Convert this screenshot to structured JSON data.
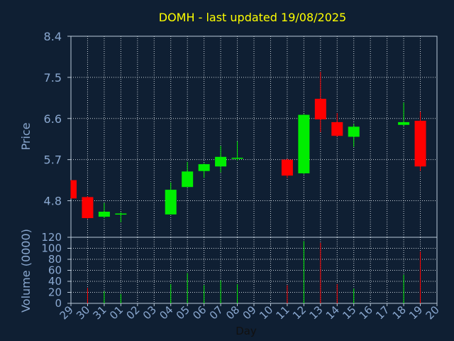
{
  "chart_data": {
    "type": "candlestick",
    "title": "DOMH - last updated 19/08/2025",
    "xlabel": "Day",
    "price_ylabel": "Price",
    "volume_ylabel": "Volume (0000)",
    "price_yticks": [
      "4.8",
      "5.7",
      "6.6",
      "7.5",
      "8.4"
    ],
    "price_ylim": [
      4.0,
      8.4
    ],
    "volume_yticks": [
      "0",
      "20",
      "40",
      "60",
      "80",
      "100",
      "120"
    ],
    "volume_ylim": [
      0,
      120
    ],
    "x_labels": [
      "29",
      "30",
      "31",
      "01",
      "02",
      "03",
      "04",
      "05",
      "06",
      "07",
      "08",
      "09",
      "10",
      "11",
      "12",
      "13",
      "14",
      "15",
      "16",
      "17",
      "18",
      "19",
      "20"
    ],
    "grid": true,
    "colors": {
      "background": "#0f1f33",
      "up": "#00ee00",
      "down": "#ff0000",
      "title": "#ffff00",
      "axis_text": "#8aa8d0",
      "frame": "#b8c8d8"
    },
    "candles": [
      {
        "x": 0,
        "open": 5.25,
        "close": 4.85,
        "high": 5.25,
        "low": 4.85,
        "volume": 0
      },
      {
        "x": 1,
        "open": 4.88,
        "close": 4.42,
        "high": 4.9,
        "low": 4.4,
        "volume": 28
      },
      {
        "x": 2,
        "open": 4.45,
        "close": 4.56,
        "high": 4.75,
        "low": 4.42,
        "volume": 22
      },
      {
        "x": 3,
        "open": 4.5,
        "close": 4.52,
        "high": 4.55,
        "low": 4.33,
        "volume": 17
      },
      {
        "x": 6,
        "open": 4.5,
        "close": 5.04,
        "high": 5.2,
        "low": 4.5,
        "volume": 35
      },
      {
        "x": 7,
        "open": 5.1,
        "close": 5.44,
        "high": 5.65,
        "low": 5.1,
        "volume": 55
      },
      {
        "x": 8,
        "open": 5.45,
        "close": 5.6,
        "high": 5.62,
        "low": 5.3,
        "volume": 33
      },
      {
        "x": 9,
        "open": 5.55,
        "close": 5.76,
        "high": 6.0,
        "low": 5.42,
        "volume": 42
      },
      {
        "x": 10,
        "open": 5.72,
        "close": 5.74,
        "high": 6.1,
        "low": 5.68,
        "volume": 35
      },
      {
        "x": 13,
        "open": 5.7,
        "close": 5.35,
        "high": 5.72,
        "low": 5.3,
        "volume": 33
      },
      {
        "x": 14,
        "open": 5.4,
        "close": 6.68,
        "high": 6.7,
        "low": 5.38,
        "volume": 113
      },
      {
        "x": 15,
        "open": 7.03,
        "close": 6.58,
        "high": 7.62,
        "low": 6.3,
        "volume": 110
      },
      {
        "x": 16,
        "open": 6.52,
        "close": 6.22,
        "high": 6.72,
        "low": 6.2,
        "volume": 35
      },
      {
        "x": 17,
        "open": 6.2,
        "close": 6.42,
        "high": 6.48,
        "low": 5.98,
        "volume": 27
      },
      {
        "x": 20,
        "open": 6.46,
        "close": 6.52,
        "high": 6.95,
        "low": 6.44,
        "volume": 52
      },
      {
        "x": 21,
        "open": 6.55,
        "close": 5.55,
        "high": 6.75,
        "low": 5.45,
        "volume": 94
      }
    ]
  }
}
